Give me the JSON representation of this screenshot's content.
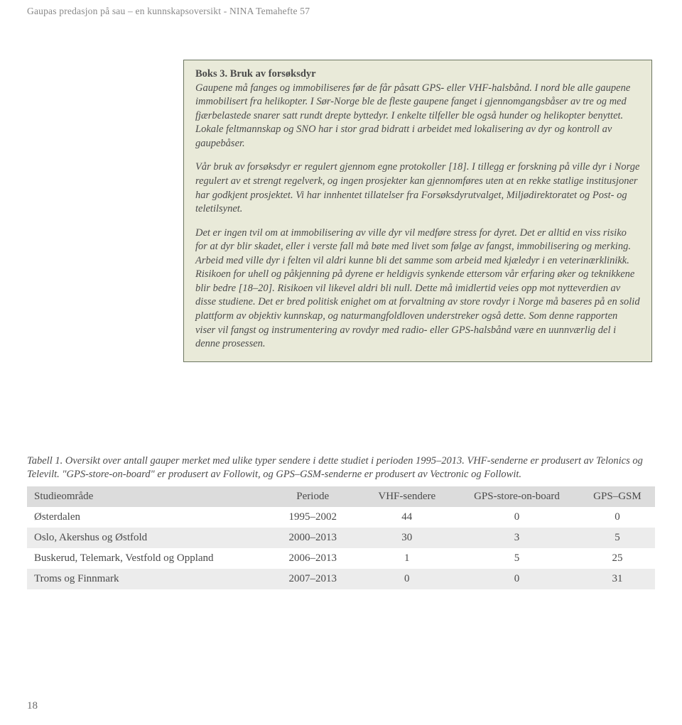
{
  "runningHeader": "Gaupas predasjon på sau – en kunnskapsoversikt - NINA Temahefte 57",
  "box": {
    "title": "Boks 3. Bruk av forsøksdyr",
    "para1": "Gaupene må fanges og immobiliseres før de får påsatt GPS- eller VHF-halsbånd. I nord ble alle gaupene immobilisert fra helikopter. I Sør-Norge ble de fleste gaupene fanget i gjennomgangsbåser av tre og med fjærbelastede snarer satt rundt drepte byttedyr. I enkelte tilfeller ble også hunder og helikopter benyttet. Lokale feltmannskap og SNO har i stor grad bidratt i arbeidet med lokalisering av dyr og kontroll av gaupebåser.",
    "para2": "Vår bruk av forsøksdyr er regulert gjennom egne protokoller [18]. I tillegg er forskning på ville dyr i Norge regulert av et strengt regelverk, og ingen prosjekter kan gjennomføres uten at en rekke statlige institusjoner har godkjent prosjektet. Vi har innhentet tillatelser fra Forsøksdyrutvalget, Miljødirektoratet og Post- og teletilsynet.",
    "para3": "Det er ingen tvil om at immobilisering av ville dyr vil medføre stress for dyret. Det er alltid en viss risiko for at dyr blir skadet, eller i verste fall må bøte med livet som følge av fangst, immobilisering og merking. Arbeid med ville dyr i felten vil aldri kunne bli det samme som arbeid med kjæledyr i en veterinærklinikk. Risikoen for uhell og påkjenning på dyrene er heldigvis synkende ettersom vår erfaring øker og teknikkene blir bedre [18–20]. Risikoen vil likevel aldri bli null. Dette må imidlertid veies opp mot nytteverdien av disse studiene. Det er bred politisk enighet om at forvaltning av store rovdyr i Norge må baseres på en solid plattform av objektiv kunnskap, og naturmangfoldloven understreker også dette. Som denne rapporten viser vil fangst og instrumentering av rovdyr med radio- eller GPS-halsbånd være en uunnværlig del i denne prosessen."
  },
  "tableCaption": "Tabell 1. Oversikt over antall gauper merket med ulike typer sendere i dette studiet i perioden 1995–2013. VHF-senderne er produsert av Telonics og Televilt. \"GPS-store-on-board\" er produsert av Followit, og GPS–GSM-senderne er produsert av Vectronic og Followit.",
  "table": {
    "columns": [
      "Studieområde",
      "Periode",
      "VHF-sendere",
      "GPS-store-on-board",
      "GPS–GSM"
    ],
    "rows": [
      [
        "Østerdalen",
        "1995–2002",
        "44",
        "0",
        "0"
      ],
      [
        "Oslo, Akershus og Østfold",
        "2000–2013",
        "30",
        "3",
        "5"
      ],
      [
        "Buskerud, Telemark, Vestfold og Oppland",
        "2006–2013",
        "1",
        "5",
        "25"
      ],
      [
        "Troms og Finnmark",
        "2007–2013",
        "0",
        "0",
        "31"
      ]
    ],
    "headerBg": "#dcdcdc",
    "rowAltBg": "#ececec",
    "colWidths": [
      "38%",
      "15%",
      "15%",
      "20%",
      "12%"
    ]
  },
  "pageNumber": "18"
}
